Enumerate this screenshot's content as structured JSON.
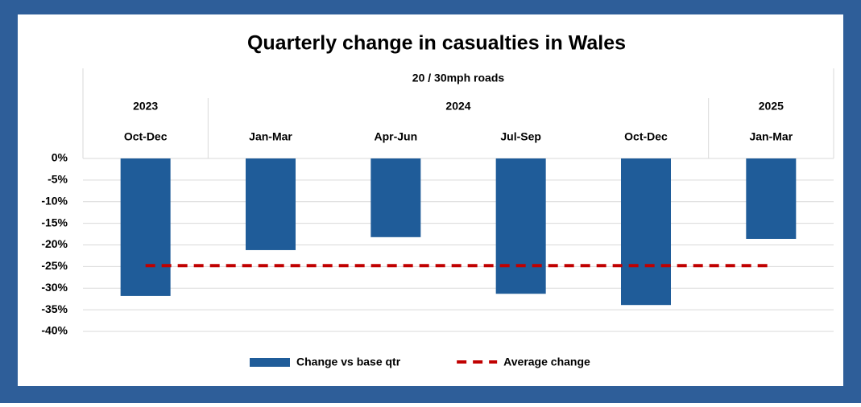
{
  "chart_data": {
    "type": "bar",
    "title": "Quarterly change in casualties in Wales",
    "subtitle": "20 / 30mph roads",
    "x_groups": [
      "2023",
      "2024",
      null,
      null,
      null,
      "2025"
    ],
    "categories": [
      "Oct-Dec",
      "Jan-Mar",
      "Apr-Jun",
      "Jul-Sep",
      "Oct-Dec",
      "Jan-Mar"
    ],
    "series": [
      {
        "name": "Change vs base qtr",
        "type": "bar",
        "color": "#1f5c99",
        "values": [
          -31.8,
          -21.2,
          -18.2,
          -31.3,
          -33.9,
          -18.6
        ]
      },
      {
        "name": "Average change",
        "type": "line",
        "dashed": true,
        "color": "#c00000",
        "values": [
          -24.8,
          -24.8,
          -24.8,
          -24.8,
          -24.8,
          -24.8
        ]
      }
    ],
    "ylim": [
      -40,
      0
    ],
    "yticks": [
      {
        "value": 0,
        "label": "0%"
      },
      {
        "value": -5,
        "label": "-5%"
      },
      {
        "value": -10,
        "label": "-10%"
      },
      {
        "value": -15,
        "label": "-15%"
      },
      {
        "value": -20,
        "label": "-20%"
      },
      {
        "value": -25,
        "label": "-25%"
      },
      {
        "value": -30,
        "label": "-30%"
      },
      {
        "value": -35,
        "label": "-35%"
      },
      {
        "value": -40,
        "label": "-40%"
      }
    ],
    "grid": true,
    "legend": "bottom"
  }
}
